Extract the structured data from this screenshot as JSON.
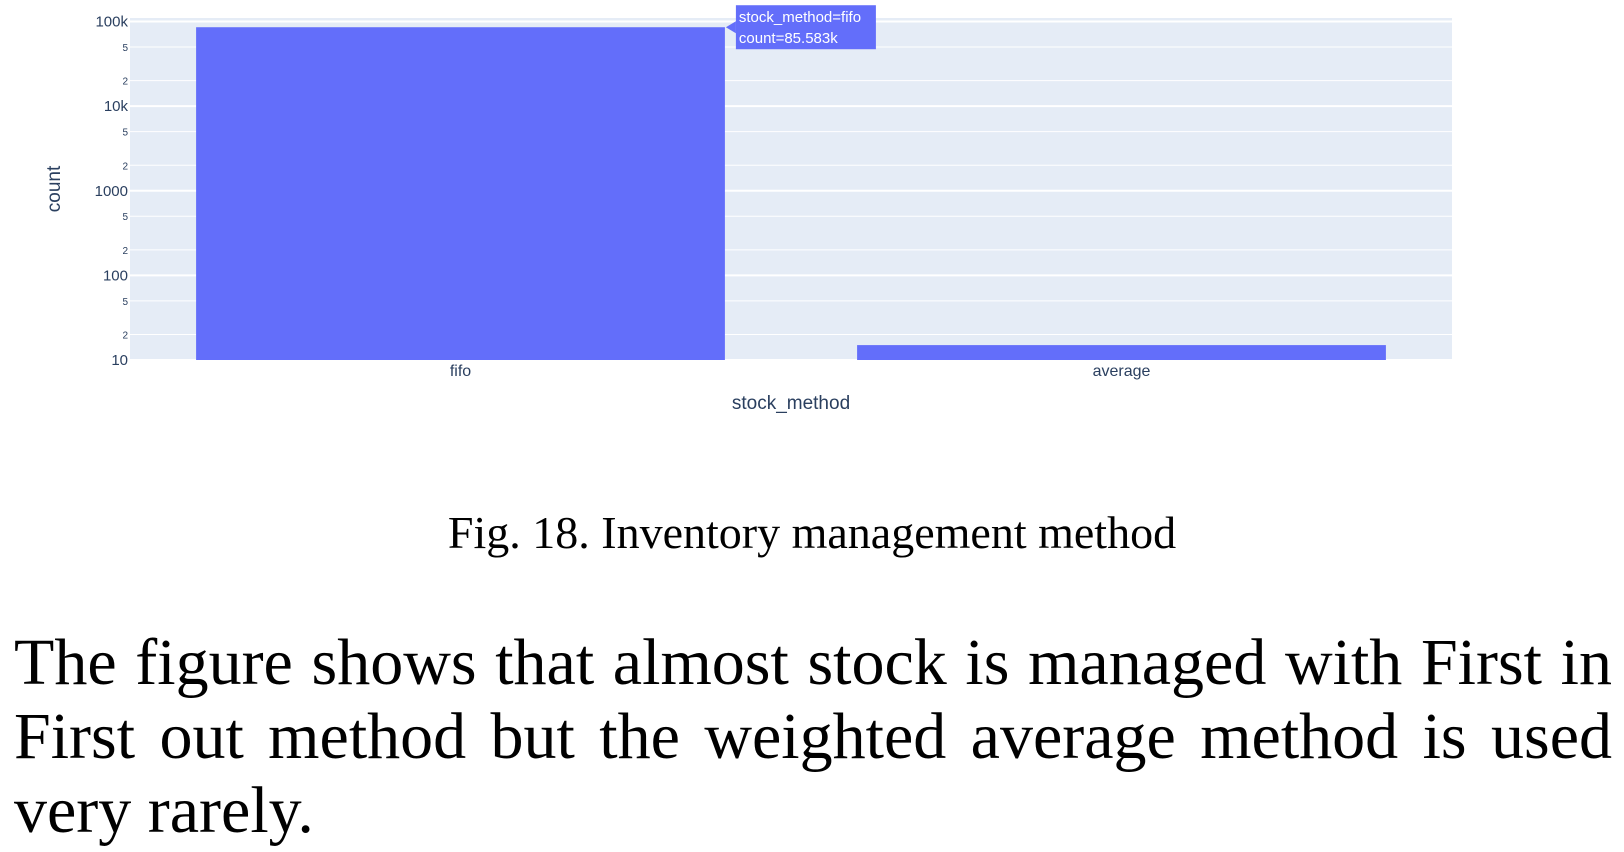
{
  "chart_data": {
    "type": "bar",
    "categories": [
      "fifo",
      "average"
    ],
    "values": [
      85583,
      15
    ],
    "xlabel": "stock_method",
    "ylabel": "count",
    "yscale": "log",
    "ylim": [
      10,
      110000
    ],
    "y_major_ticks": [
      {
        "value": 10,
        "label": "10"
      },
      {
        "value": 100,
        "label": "100"
      },
      {
        "value": 1000,
        "label": "1000"
      },
      {
        "value": 10000,
        "label": "10k"
      },
      {
        "value": 100000,
        "label": "100k"
      }
    ],
    "y_minor_ticks": [
      {
        "value": 20,
        "label": "2"
      },
      {
        "value": 50,
        "label": "5"
      },
      {
        "value": 200,
        "label": "2"
      },
      {
        "value": 500,
        "label": "5"
      },
      {
        "value": 2000,
        "label": "2"
      },
      {
        "value": 5000,
        "label": "5"
      },
      {
        "value": 20000,
        "label": "2"
      },
      {
        "value": 50000,
        "label": "5"
      }
    ],
    "grid": true,
    "bar_color": "#636efa",
    "plot_bg": "#e5ecf6",
    "tooltip": {
      "category": "fifo",
      "line1": "stock_method=fifo",
      "line2": "count=85.583k"
    }
  },
  "caption": "Fig. 18.  Inventory management method",
  "paragraph": "The figure shows that almost stock is managed with First in First out method but the weighted average method is used very rarely."
}
